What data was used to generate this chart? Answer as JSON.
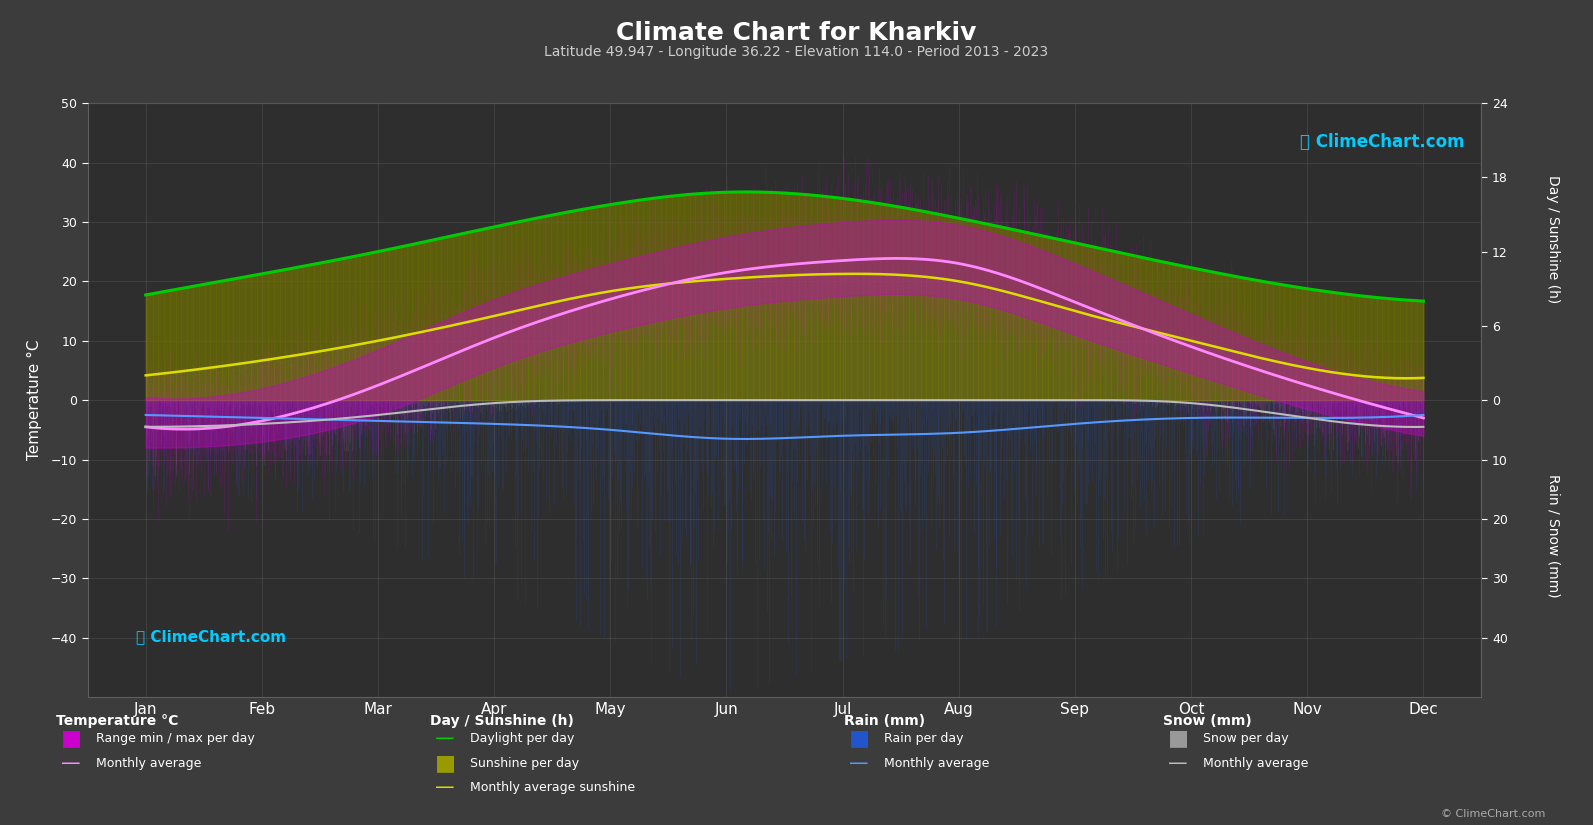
{
  "title": "Climate Chart for Kharkiv",
  "subtitle": "Latitude 49.947 - Longitude 36.22 - Elevation 114.0 - Period 2013 - 2023",
  "months": [
    "Jan",
    "Feb",
    "Mar",
    "Apr",
    "May",
    "Jun",
    "Jul",
    "Aug",
    "Sep",
    "Oct",
    "Nov",
    "Dec"
  ],
  "background_color": "#3c3c3c",
  "plot_bg_color": "#2e2e2e",
  "grid_color": "#505050",
  "daylight_hours": [
    8.5,
    10.2,
    12.0,
    14.0,
    15.8,
    16.8,
    16.3,
    14.7,
    12.7,
    10.7,
    9.0,
    8.0
  ],
  "sunshine_hours": [
    2.0,
    3.2,
    4.8,
    6.8,
    8.8,
    9.8,
    10.2,
    9.6,
    7.2,
    4.8,
    2.6,
    1.8
  ],
  "temp_max_monthly": [
    0.5,
    2.0,
    8.5,
    17.0,
    23.0,
    27.5,
    30.0,
    29.5,
    23.0,
    14.5,
    6.5,
    1.5
  ],
  "temp_min_monthly": [
    -8.0,
    -7.0,
    -2.5,
    5.5,
    11.5,
    15.5,
    17.5,
    17.0,
    11.0,
    4.5,
    -1.5,
    -6.0
  ],
  "temp_avg_monthly": [
    -4.5,
    -3.5,
    2.5,
    10.5,
    17.0,
    21.5,
    23.5,
    23.0,
    16.5,
    9.0,
    2.5,
    -3.0
  ],
  "temp_max_abs": [
    12,
    14,
    22,
    29,
    34,
    38,
    41,
    39,
    34,
    27,
    19,
    13
  ],
  "temp_min_abs": [
    -32,
    -29,
    -22,
    -8,
    0,
    5,
    9,
    7,
    -1,
    -10,
    -23,
    -29
  ],
  "rain_mm_daily_max": [
    18,
    20,
    28,
    38,
    48,
    58,
    52,
    48,
    38,
    28,
    22,
    20
  ],
  "rain_mm_monthly_avg": [
    2.5,
    3.0,
    3.5,
    4.0,
    5.0,
    6.5,
    6.0,
    5.5,
    4.0,
    3.0,
    3.0,
    2.5
  ],
  "snow_mm_daily_max": [
    18,
    15,
    10,
    3,
    0,
    0,
    0,
    0,
    0,
    3,
    10,
    15
  ],
  "snow_mm_monthly_avg": [
    4.5,
    4.0,
    2.5,
    0.5,
    0,
    0,
    0,
    0,
    0,
    0.5,
    3.0,
    4.5
  ],
  "daylight_color": "#00cc00",
  "temp_avg_color": "#ff88ff",
  "rain_avg_color": "#5599ff",
  "snow_avg_color": "#bbbbbb"
}
